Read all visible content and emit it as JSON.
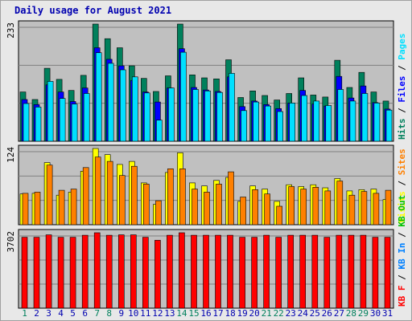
{
  "title": "Daily usage for August 2021",
  "colors": {
    "hits": "#00805c",
    "files": "#0000ff",
    "pages": "#00e0ff",
    "visits": "#ffff00",
    "sites": "#ff8000",
    "kbf": "#ff0000",
    "kbin": "#0080ff",
    "kbout": "#00c000",
    "weekend_day": "#00805c",
    "weekday": "#0000b0"
  },
  "chart_data": [
    {
      "type": "bar",
      "categories": [
        "1",
        "2",
        "3",
        "4",
        "5",
        "6",
        "7",
        "8",
        "9",
        "10",
        "11",
        "12",
        "13",
        "14",
        "15",
        "16",
        "17",
        "18",
        "19",
        "20",
        "21",
        "22",
        "23",
        "24",
        "25",
        "26",
        "27",
        "28",
        "29",
        "30",
        "31"
      ],
      "weekend_days": [
        "1",
        "7",
        "8",
        "14",
        "15",
        "21",
        "22",
        "28",
        "29"
      ],
      "ylabel": "233",
      "ylim": [
        0,
        233
      ],
      "legend": [
        {
          "text": "Hits",
          "color": "hits"
        },
        {
          "text": "Files",
          "color": "files"
        },
        {
          "text": "Pages",
          "color": "pages"
        }
      ],
      "series": [
        {
          "name": "Hits",
          "color": "hits",
          "values": [
            98,
            83,
            145,
            123,
            101,
            131,
            233,
            204,
            186,
            150,
            125,
            99,
            130,
            233,
            132,
            126,
            124,
            162,
            87,
            100,
            91,
            82,
            95,
            126,
            92,
            88,
            161,
            107,
            137,
            98,
            80
          ]
        },
        {
          "name": "Files",
          "color": "files",
          "values": [
            83,
            73,
            112,
            98,
            79,
            106,
            186,
            163,
            150,
            121,
            98,
            78,
            106,
            184,
            107,
            102,
            99,
            128,
            69,
            80,
            73,
            65,
            76,
            101,
            74,
            70,
            129,
            86,
            110,
            77,
            64
          ]
        },
        {
          "name": "Pages",
          "color": "pages",
          "values": [
            75,
            68,
            119,
            85,
            74,
            95,
            176,
            155,
            142,
            128,
            96,
            42,
            106,
            177,
            103,
            100,
            97,
            135,
            61,
            78,
            70,
            59,
            76,
            91,
            80,
            71,
            103,
            80,
            95,
            76,
            62
          ]
        }
      ]
    },
    {
      "type": "bar",
      "categories": [
        "1",
        "2",
        "3",
        "4",
        "5",
        "6",
        "7",
        "8",
        "9",
        "10",
        "11",
        "12",
        "13",
        "14",
        "15",
        "16",
        "17",
        "18",
        "19",
        "20",
        "21",
        "22",
        "23",
        "24",
        "25",
        "26",
        "27",
        "28",
        "29",
        "30",
        "31"
      ],
      "ylabel": "124",
      "ylim": [
        0,
        124
      ],
      "legend": [
        {
          "text": "Visits",
          "color": "visits"
        },
        {
          "text": "Sites",
          "color": "sites"
        }
      ],
      "series": [
        {
          "name": "Visits",
          "color": "visits",
          "values": [
            50,
            51,
            101,
            48,
            53,
            87,
            124,
            114,
            98,
            103,
            68,
            33,
            85,
            117,
            68,
            63,
            72,
            77,
            38,
            63,
            58,
            38,
            65,
            62,
            65,
            60,
            75,
            55,
            57,
            58,
            41
          ]
        },
        {
          "name": "Sites",
          "color": "sites",
          "values": [
            51,
            53,
            97,
            56,
            58,
            93,
            110,
            103,
            80,
            95,
            66,
            39,
            91,
            91,
            58,
            53,
            66,
            86,
            45,
            57,
            50,
            30,
            62,
            58,
            61,
            55,
            71,
            48,
            54,
            51,
            56
          ]
        }
      ]
    },
    {
      "type": "bar",
      "categories": [
        "1",
        "2",
        "3",
        "4",
        "5",
        "6",
        "7",
        "8",
        "9",
        "10",
        "11",
        "12",
        "13",
        "14",
        "15",
        "16",
        "17",
        "18",
        "19",
        "20",
        "21",
        "22",
        "23",
        "24",
        "25",
        "26",
        "27",
        "28",
        "29",
        "30",
        "31"
      ],
      "ylabel": "3702",
      "ylim": [
        0,
        3702
      ],
      "legend": [
        {
          "text": "KB F",
          "color": "kbf"
        },
        {
          "text": "KB In",
          "color": "kbin"
        },
        {
          "text": "KB Out",
          "color": "kbout"
        }
      ],
      "series": [
        {
          "name": "KB F",
          "color": "kbf",
          "values": [
            3480,
            3480,
            3600,
            3480,
            3480,
            3580,
            3702,
            3580,
            3600,
            3600,
            3480,
            3330,
            3580,
            3702,
            3580,
            3580,
            3580,
            3580,
            3480,
            3480,
            3580,
            3480,
            3580,
            3580,
            3580,
            3480,
            3580,
            3580,
            3580,
            3480,
            3480
          ]
        }
      ]
    }
  ]
}
